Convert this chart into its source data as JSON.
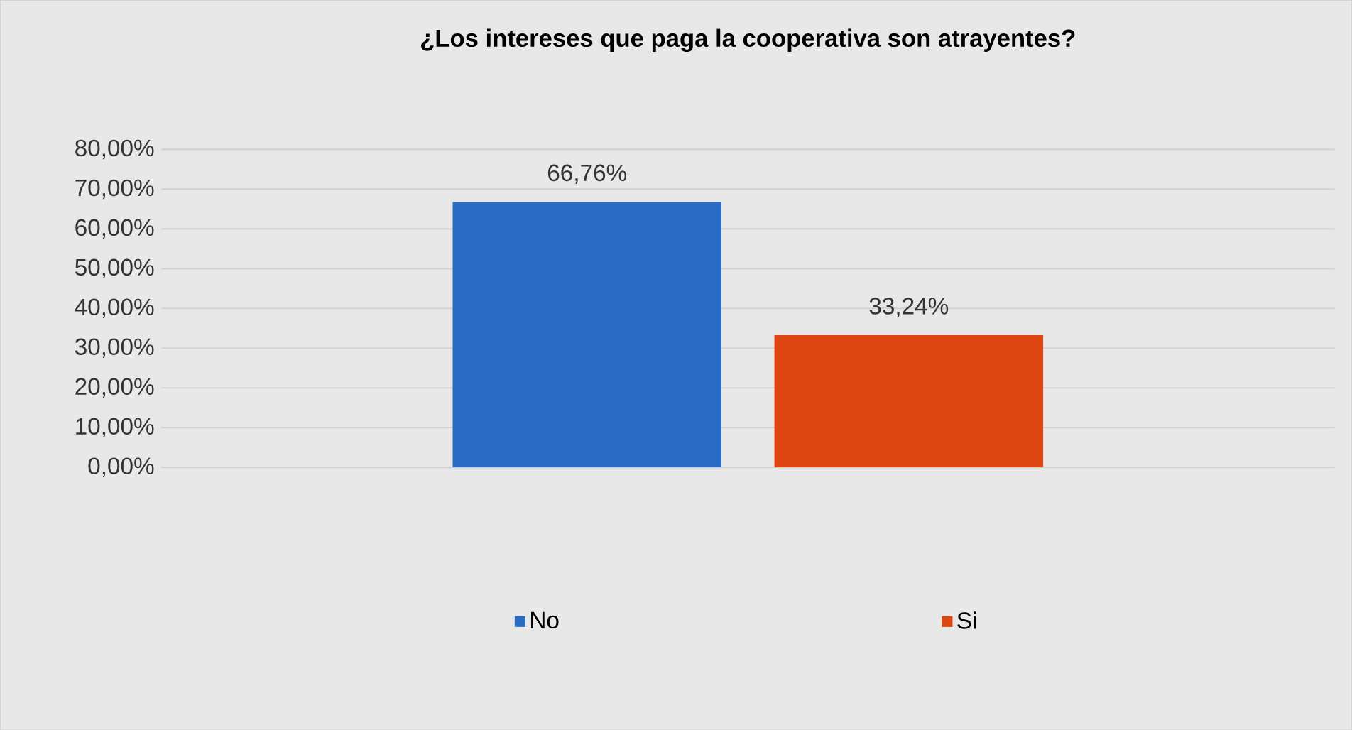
{
  "chart_data": {
    "type": "bar",
    "title": "¿Los intereses que paga la cooperativa  son atrayentes?",
    "categories": [
      null
    ],
    "series": [
      {
        "name": "No",
        "color": "#2a6cc3",
        "values": [
          66.76
        ],
        "value_labels": [
          "66,76%"
        ]
      },
      {
        "name": "Si",
        "color": "#dd4511",
        "values": [
          33.24
        ],
        "value_labels": [
          "33,24%"
        ]
      }
    ],
    "ylim": [
      0,
      80
    ],
    "yticks": [
      {
        "value": 0,
        "label": "0,00%"
      },
      {
        "value": 10,
        "label": "10,00%"
      },
      {
        "value": 20,
        "label": "20,00%"
      },
      {
        "value": 30,
        "label": "30,00%"
      },
      {
        "value": 40,
        "label": "40,00%"
      },
      {
        "value": 50,
        "label": "50,00%"
      },
      {
        "value": 60,
        "label": "60,00%"
      },
      {
        "value": 70,
        "label": "70,00%"
      },
      {
        "value": 80,
        "label": "80,00%"
      }
    ],
    "grid": "y",
    "legend": "bottom",
    "tick_labels": "y"
  }
}
